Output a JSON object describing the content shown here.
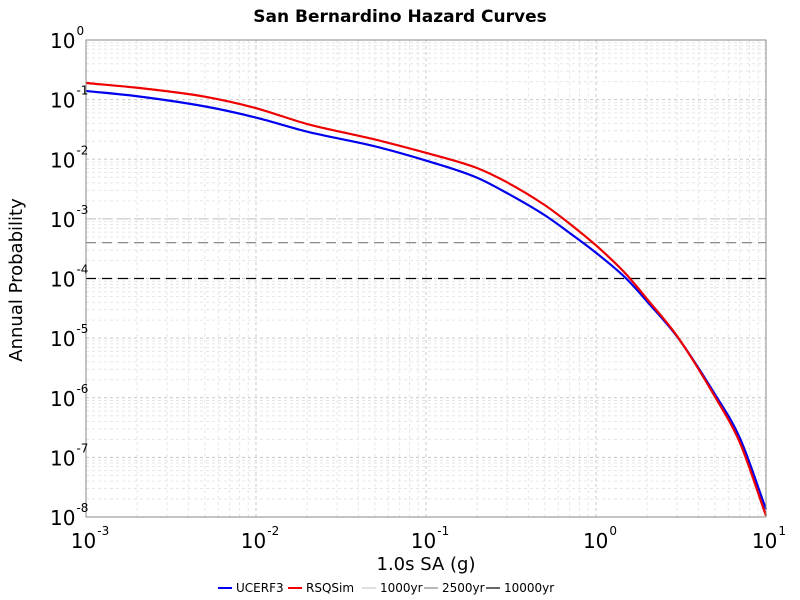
{
  "chart_data": {
    "type": "line",
    "title": "San Bernardino Hazard Curves",
    "xlabel": "1.0s SA (g)",
    "ylabel": "Annual Probability",
    "xscale": "log",
    "yscale": "log",
    "xlim": [
      0.001,
      10
    ],
    "ylim": [
      1e-08,
      1
    ],
    "grid": true,
    "legend_position": "bottom",
    "x_ticks": [
      {
        "base": "10",
        "exp": "-3",
        "value": 0.001
      },
      {
        "base": "10",
        "exp": "-2",
        "value": 0.01
      },
      {
        "base": "10",
        "exp": "-1",
        "value": 0.1
      },
      {
        "base": "10",
        "exp": "0",
        "value": 1
      },
      {
        "base": "10",
        "exp": "1",
        "value": 10
      }
    ],
    "y_ticks": [
      {
        "base": "10",
        "exp": "0",
        "value": 1
      },
      {
        "base": "10",
        "exp": "-1",
        "value": 0.1
      },
      {
        "base": "10",
        "exp": "-2",
        "value": 0.01
      },
      {
        "base": "10",
        "exp": "-3",
        "value": 0.001
      },
      {
        "base": "10",
        "exp": "-4",
        "value": 0.0001
      },
      {
        "base": "10",
        "exp": "-5",
        "value": 1e-05
      },
      {
        "base": "10",
        "exp": "-6",
        "value": 1e-06
      },
      {
        "base": "10",
        "exp": "-7",
        "value": 1e-07
      },
      {
        "base": "10",
        "exp": "-8",
        "value": 1e-08
      }
    ],
    "series": [
      {
        "name": "UCERF3",
        "color": "#0000ee",
        "x": [
          0.001,
          0.002,
          0.005,
          0.01,
          0.02,
          0.05,
          0.1,
          0.2,
          0.3,
          0.5,
          0.7,
          1.0,
          1.5,
          2.0,
          3.0,
          5.0,
          7.0,
          10.0
        ],
        "y": [
          0.14,
          0.114,
          0.077,
          0.05,
          0.029,
          0.0165,
          0.0095,
          0.0049,
          0.0027,
          0.00115,
          0.00058,
          0.00027,
          0.000101,
          4.1e-05,
          1.06e-05,
          1.15e-06,
          2.15e-07,
          1.35e-08
        ]
      },
      {
        "name": "RSQSim",
        "color": "#ee0000",
        "x": [
          0.001,
          0.002,
          0.005,
          0.01,
          0.02,
          0.05,
          0.1,
          0.2,
          0.3,
          0.5,
          0.7,
          1.0,
          1.5,
          2.0,
          3.0,
          5.0,
          7.0,
          10.0
        ],
        "y": [
          0.19,
          0.158,
          0.112,
          0.072,
          0.039,
          0.0215,
          0.0128,
          0.0071,
          0.0041,
          0.0017,
          0.00083,
          0.00036,
          0.000119,
          4.5e-05,
          1.08e-05,
          1.05e-06,
          1.8e-07,
          1.05e-08
        ]
      }
    ],
    "reference_lines": [
      {
        "name": "1000yr",
        "y": 0.001,
        "color": "#cccccc",
        "dash": "10,6"
      },
      {
        "name": "2500yr",
        "y": 0.0004,
        "color": "#888888",
        "dash": "10,6"
      },
      {
        "name": "10000yr",
        "y": 0.0001,
        "color": "#000000",
        "dash": "10,6"
      }
    ]
  }
}
